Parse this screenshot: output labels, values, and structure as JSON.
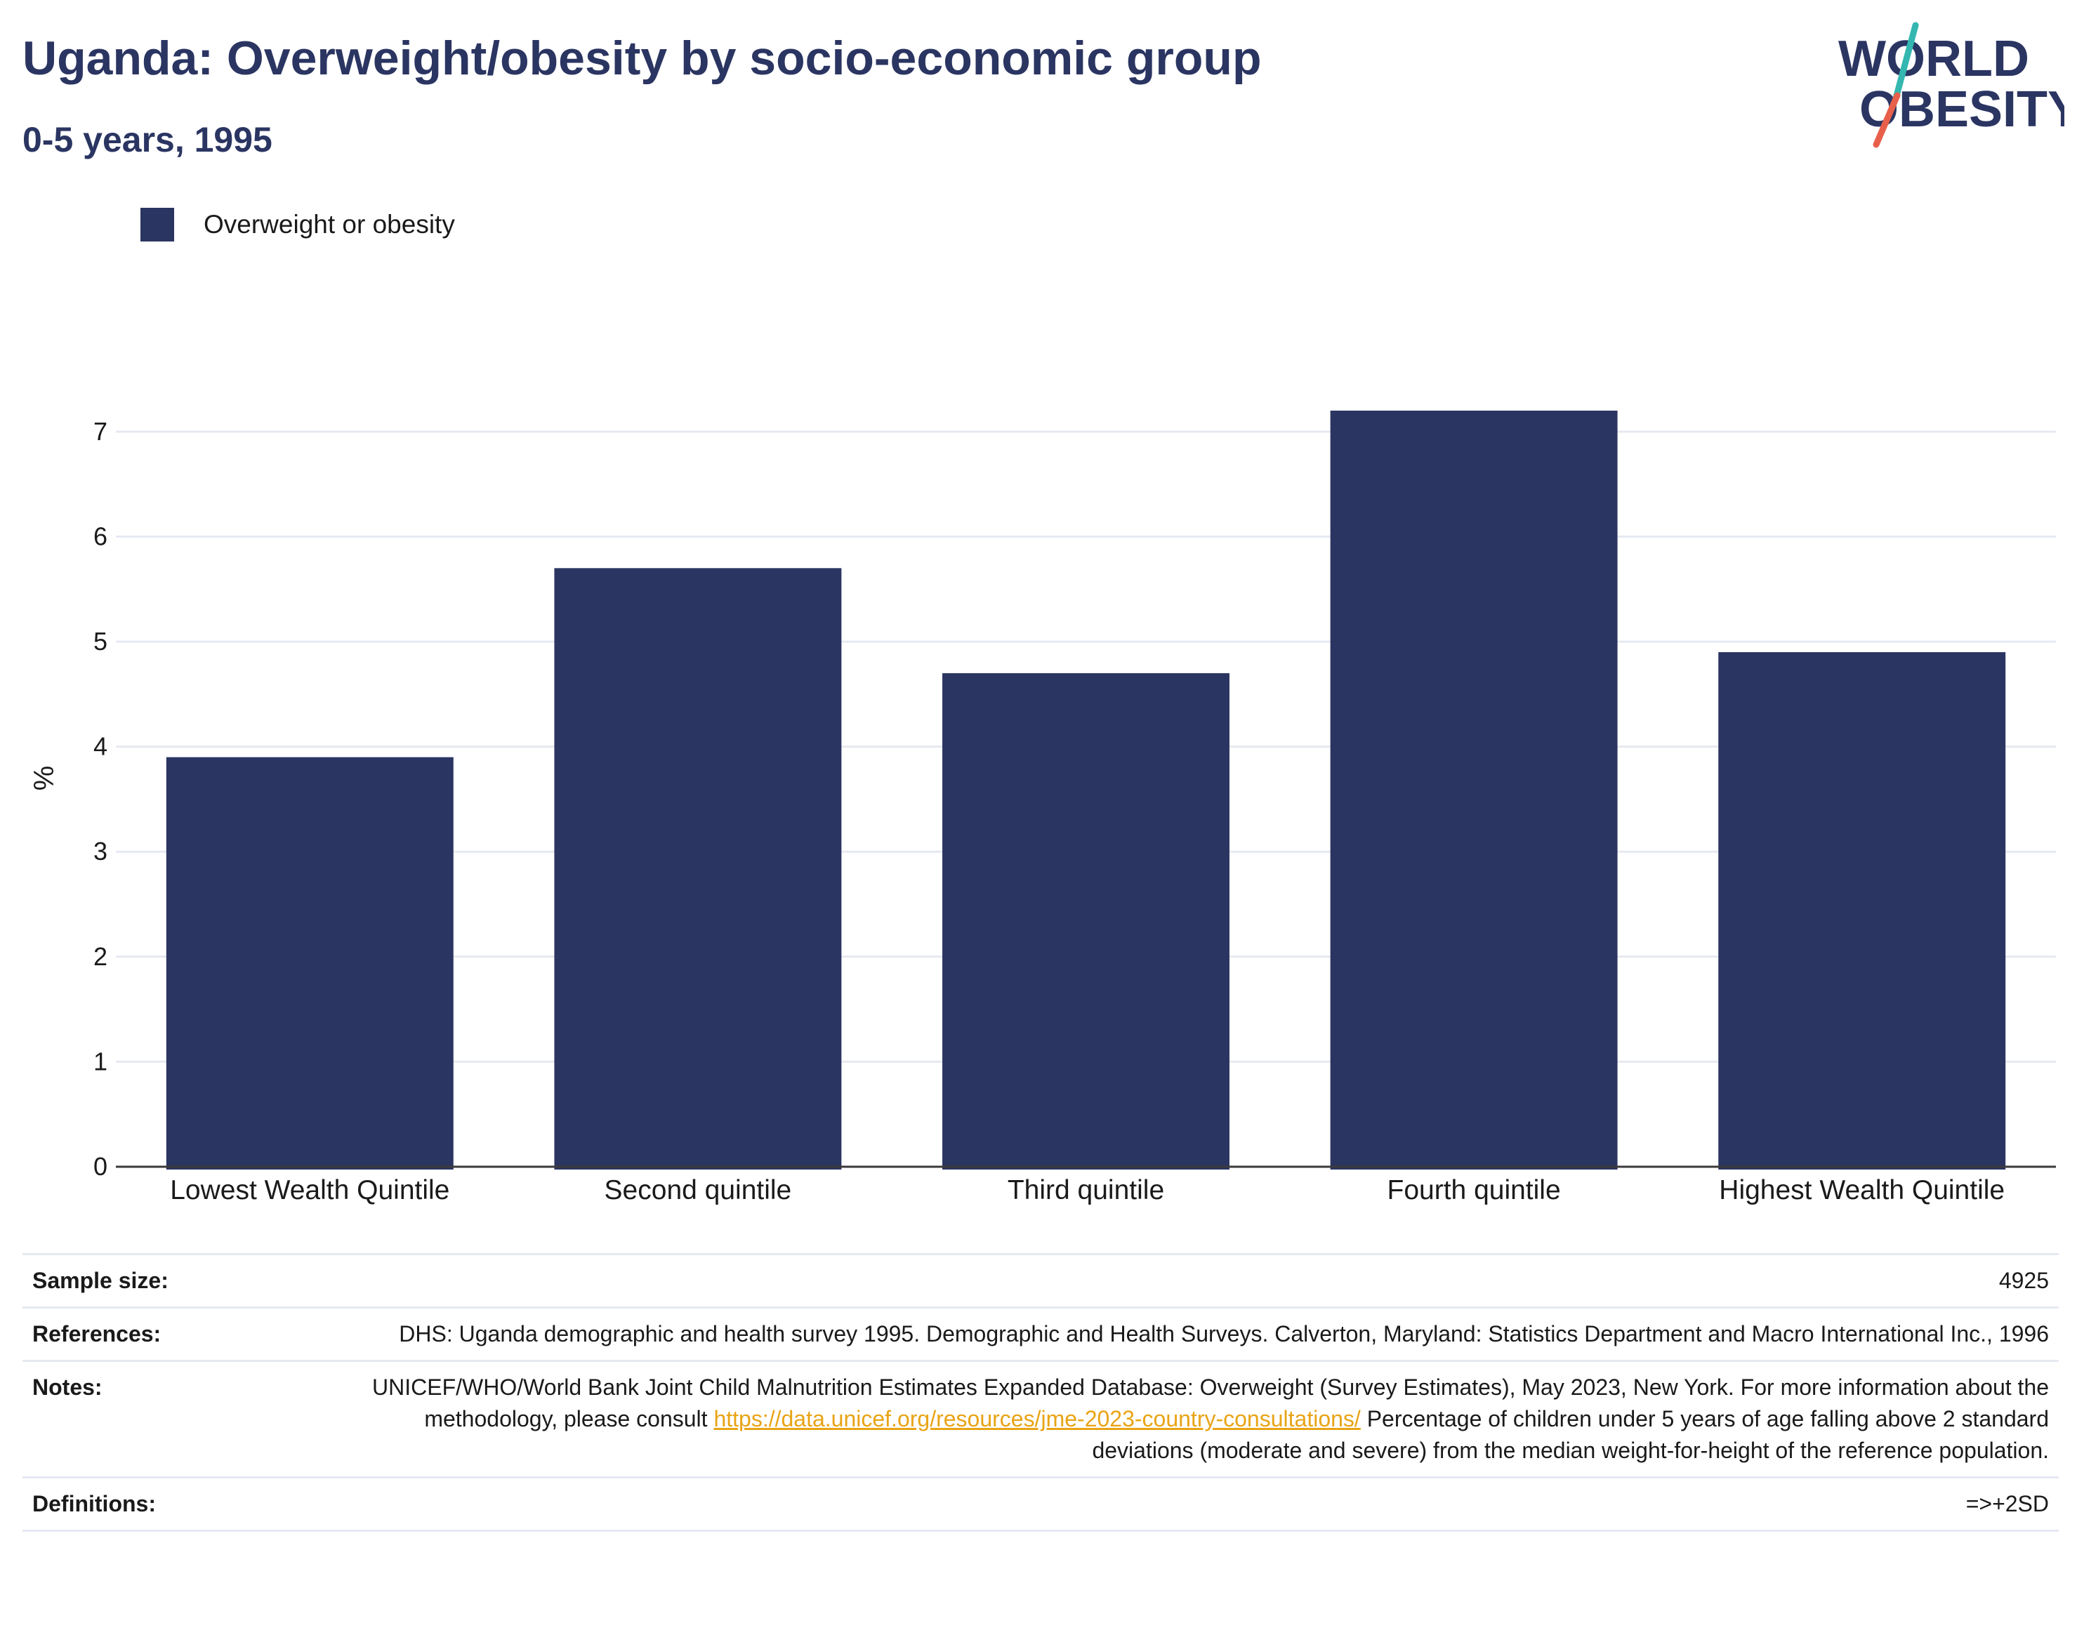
{
  "header": {
    "title": "Uganda: Overweight/obesity by socio-economic group",
    "subtitle": "0-5 years, 1995"
  },
  "logo": {
    "line1": "WORLD",
    "line2": "OBESITY",
    "colors": {
      "text": "#2b3562",
      "slash_top": "#33b7b0",
      "slash_bottom": "#e8604c"
    }
  },
  "legend": {
    "label": "Overweight or obesity",
    "color": "#2b3562"
  },
  "chart_data": {
    "type": "bar",
    "categories": [
      "Lowest Wealth Quintile",
      "Second quintile",
      "Third quintile",
      "Fourth quintile",
      "Highest Wealth Quintile"
    ],
    "series": [
      {
        "name": "Overweight or obesity",
        "values": [
          3.9,
          5.7,
          4.7,
          7.2,
          4.9
        ],
        "color": "#2b3562"
      }
    ],
    "ylabel": "%",
    "xlabel": "",
    "ylim": [
      0,
      7.4
    ],
    "yticks": [
      0,
      1,
      2,
      3,
      4,
      5,
      6,
      7
    ],
    "grid": true,
    "legend_position": "top-left"
  },
  "info": {
    "sample_size": {
      "label": "Sample size:",
      "value": "4925"
    },
    "references": {
      "label": "References:",
      "value": "DHS: Uganda demographic and health survey 1995. Demographic and Health Surveys. Calverton, Maryland: Statistics Department and Macro International Inc., 1996"
    },
    "notes": {
      "label": "Notes:",
      "text_before": "UNICEF/WHO/World Bank Joint Child Malnutrition Estimates Expanded Database: Overweight (Survey Estimates), May 2023, New York. For more information about the methodology, please consult ",
      "link": "https://data.unicef.org/resources/jme-2023-country-consultations/",
      "text_after": " Percentage of children under 5 years of age falling above 2 standard deviations (moderate and severe) from the median weight-for-height of the reference population.",
      "link_color": "#e8a415"
    },
    "definitions": {
      "label": "Definitions:",
      "value": "=>+2SD"
    }
  }
}
